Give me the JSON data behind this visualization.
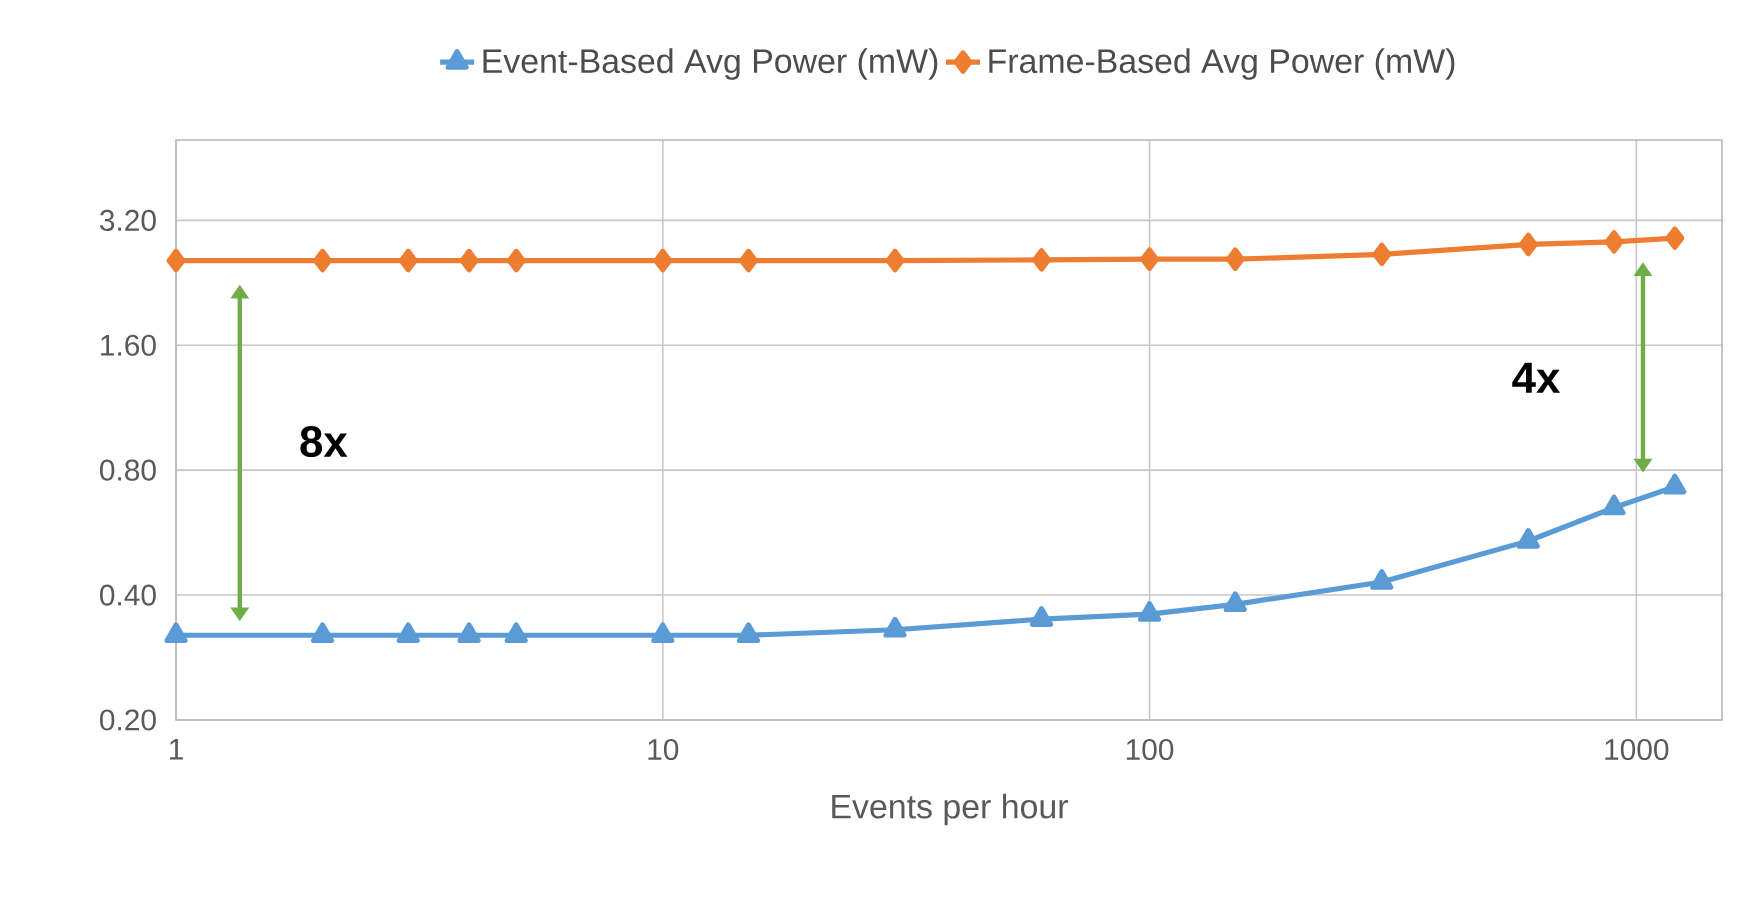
{
  "chart_data": {
    "type": "line",
    "xlabel": "Events per hour",
    "log": "xy",
    "grid": true,
    "legend": "top",
    "x": [
      1,
      2,
      3,
      4,
      5,
      10,
      15,
      30,
      60,
      100,
      150,
      300,
      600,
      900,
      1200
    ],
    "series": [
      {
        "name": "Event-Based Avg Power (mW)",
        "color": "#5b9bd5",
        "marker": "triangle",
        "values": [
          0.32,
          0.32,
          0.32,
          0.32,
          0.32,
          0.32,
          0.32,
          0.33,
          0.35,
          0.36,
          0.38,
          0.43,
          0.54,
          0.65,
          0.73
        ]
      },
      {
        "name": "Frame-Based Avg Power (mW)",
        "color": "#ed7d31",
        "marker": "diamond",
        "values": [
          2.56,
          2.56,
          2.56,
          2.56,
          2.56,
          2.56,
          2.56,
          2.56,
          2.57,
          2.58,
          2.58,
          2.65,
          2.8,
          2.84,
          2.9
        ]
      }
    ],
    "xlim": [
      1,
      1500
    ],
    "ylim": [
      0.2,
      5
    ],
    "xticks": [
      1,
      10,
      100,
      1000
    ],
    "yticks": [
      {
        "value": 0.2,
        "label": "0.20"
      },
      {
        "value": 0.4,
        "label": "0.40"
      },
      {
        "value": 0.8,
        "label": "0.80"
      },
      {
        "value": 1.6,
        "label": "1.60"
      },
      {
        "value": 3.2,
        "label": "3.20"
      }
    ],
    "annotations": [
      "8x",
      "4x"
    ]
  }
}
